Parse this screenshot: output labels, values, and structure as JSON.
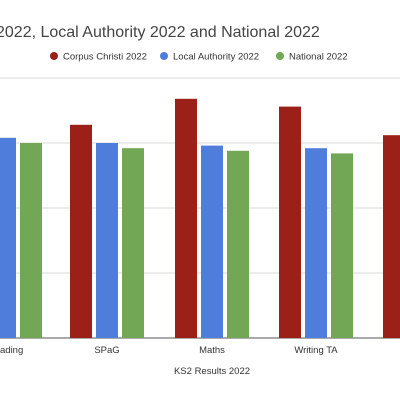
{
  "chart_data": {
    "type": "bar",
    "title": "2022, Local Authority 2022 and National 2022",
    "xlabel": "KS2 Results 2022",
    "ylabel": "",
    "ylim": [
      0,
      100
    ],
    "grid": true,
    "legend_position": "top",
    "categories": [
      "ading",
      "SPaG",
      "Maths",
      "Writing TA",
      ""
    ],
    "series": [
      {
        "name": "Corpus Christi 2022",
        "color": "#9b2017",
        "values": [
          null,
          82,
          92,
          89,
          78
        ]
      },
      {
        "name": "Local Authority 2022",
        "color": "#4f7ddb",
        "values": [
          77,
          75,
          74,
          73,
          null
        ]
      },
      {
        "name": "National 2022",
        "color": "#72a755",
        "values": [
          75,
          73,
          72,
          71,
          null
        ]
      }
    ]
  }
}
